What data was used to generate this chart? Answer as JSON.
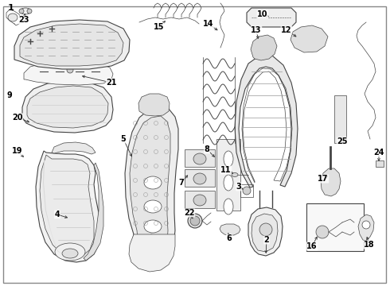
{
  "bg_color": "#ffffff",
  "border_color": "#555555",
  "line_color": "#444444",
  "fig_width": 4.9,
  "fig_height": 3.6,
  "dpi": 100
}
